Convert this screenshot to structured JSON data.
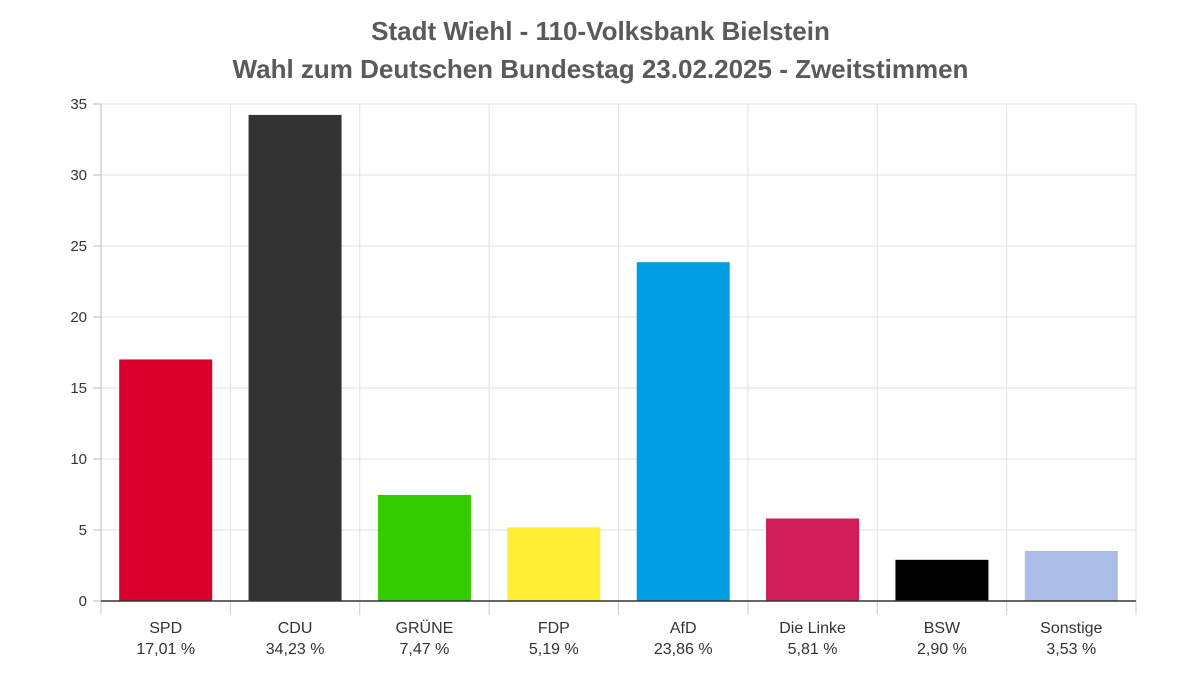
{
  "chart_data": {
    "type": "bar",
    "title": "Stadt Wiehl - 110-Volksbank Bielstein",
    "subtitle": "Wahl zum Deutschen Bundestag 23.02.2025  - Zweitstimmen",
    "categories": [
      "SPD",
      "CDU",
      "GRÜNE",
      "FDP",
      "AfD",
      "Die Linke",
      "BSW",
      "Sonstige"
    ],
    "values": [
      17.01,
      34.23,
      7.47,
      5.19,
      23.86,
      5.81,
      2.9,
      3.53
    ],
    "value_labels": [
      "17,01 %",
      "34,23 %",
      "7,47 %",
      "5,19 %",
      "23,86 %",
      "5,81 %",
      "2,90 %",
      "3,53 %"
    ],
    "colors": [
      "#d9002b",
      "#333333",
      "#33cc00",
      "#ffee33",
      "#009ee0",
      "#d21c5a",
      "#000000",
      "#aabde6"
    ],
    "y_ticks": [
      "0",
      "5",
      "10",
      "15",
      "20",
      "25",
      "30",
      "35"
    ],
    "ylim": [
      0,
      35
    ],
    "grid": true,
    "xlabel": "",
    "ylabel": ""
  }
}
